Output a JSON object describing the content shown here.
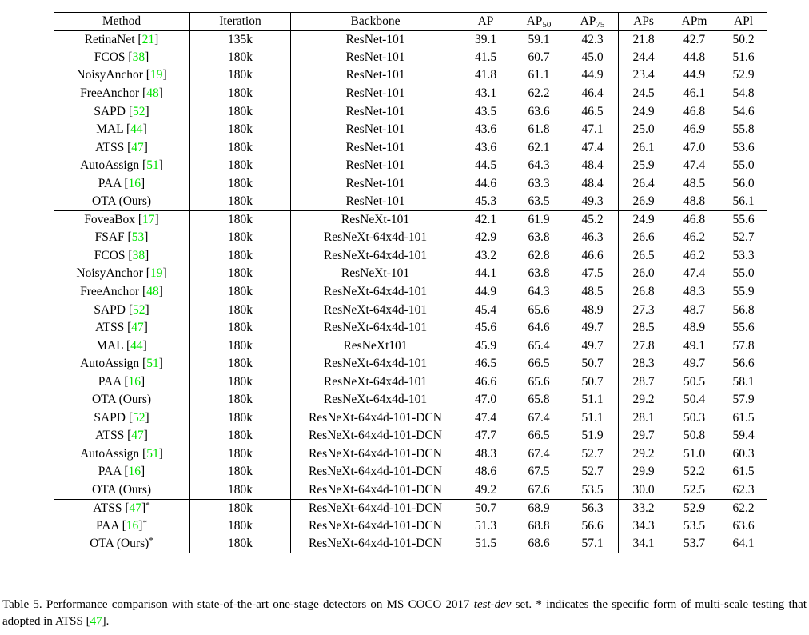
{
  "accent_green": "#00e100",
  "table": {
    "header_cells": [
      {
        "text": "Method"
      },
      {
        "text": "Iteration"
      },
      {
        "text": "Backbone"
      },
      {
        "text": "AP"
      },
      {
        "text": "AP",
        "sub": "50"
      },
      {
        "text": "AP",
        "sub": "75"
      },
      {
        "text": "APs"
      },
      {
        "text": "APm"
      },
      {
        "text": "APl"
      }
    ],
    "groups": [
      {
        "rows": [
          {
            "method": "RetinaNet",
            "cite": "21",
            "star": false,
            "iteration": "135k",
            "backbone": "ResNet-101",
            "values": [
              "39.1",
              "59.1",
              "42.3",
              "21.8",
              "42.7",
              "50.2"
            ],
            "bold": []
          },
          {
            "method": "FCOS",
            "cite": "38",
            "star": false,
            "iteration": "180k",
            "backbone": "ResNet-101",
            "values": [
              "41.5",
              "60.7",
              "45.0",
              "24.4",
              "44.8",
              "51.6"
            ],
            "bold": []
          },
          {
            "method": "NoisyAnchor",
            "cite": "19",
            "star": false,
            "iteration": "180k",
            "backbone": "ResNet-101",
            "values": [
              "41.8",
              "61.1",
              "44.9",
              "23.4",
              "44.9",
              "52.9"
            ],
            "bold": []
          },
          {
            "method": "FreeAnchor",
            "cite": "48",
            "star": false,
            "iteration": "180k",
            "backbone": "ResNet-101",
            "values": [
              "43.1",
              "62.2",
              "46.4",
              "24.5",
              "46.1",
              "54.8"
            ],
            "bold": []
          },
          {
            "method": "SAPD",
            "cite": "52",
            "star": false,
            "iteration": "180k",
            "backbone": "ResNet-101",
            "values": [
              "43.5",
              "63.6",
              "46.5",
              "24.9",
              "46.8",
              "54.6"
            ],
            "bold": []
          },
          {
            "method": "MAL",
            "cite": "44",
            "star": false,
            "iteration": "180k",
            "backbone": "ResNet-101",
            "values": [
              "43.6",
              "61.8",
              "47.1",
              "25.0",
              "46.9",
              "55.8"
            ],
            "bold": []
          },
          {
            "method": "ATSS",
            "cite": "47",
            "star": false,
            "iteration": "180k",
            "backbone": "ResNet-101",
            "values": [
              "43.6",
              "62.1",
              "47.4",
              "26.1",
              "47.0",
              "53.6"
            ],
            "bold": []
          },
          {
            "method": "AutoAssign",
            "cite": "51",
            "star": false,
            "iteration": "180k",
            "backbone": "ResNet-101",
            "values": [
              "44.5",
              "64.3",
              "48.4",
              "25.9",
              "47.4",
              "55.0"
            ],
            "bold": [
              1
            ]
          },
          {
            "method": "PAA",
            "cite": "16",
            "star": false,
            "iteration": "180k",
            "backbone": "ResNet-101",
            "values": [
              "44.6",
              "63.3",
              "48.4",
              "26.4",
              "48.5",
              "56.0"
            ],
            "bold": []
          },
          {
            "method": "OTA (Ours)",
            "cite": null,
            "star": false,
            "iteration": "180k",
            "backbone": "ResNet-101",
            "values": [
              "45.3",
              "63.5",
              "49.3",
              "26.9",
              "48.8",
              "56.1"
            ],
            "bold": [
              0,
              2,
              3,
              4,
              5
            ]
          }
        ]
      },
      {
        "rows": [
          {
            "method": "FoveaBox",
            "cite": "17",
            "star": false,
            "iteration": "180k",
            "backbone": "ResNeXt-101",
            "values": [
              "42.1",
              "61.9",
              "45.2",
              "24.9",
              "46.8",
              "55.6"
            ],
            "bold": []
          },
          {
            "method": "FSAF",
            "cite": "53",
            "star": false,
            "iteration": "180k",
            "backbone": "ResNeXt-64x4d-101",
            "values": [
              "42.9",
              "63.8",
              "46.3",
              "26.6",
              "46.2",
              "52.7"
            ],
            "bold": []
          },
          {
            "method": "FCOS",
            "cite": "38",
            "star": false,
            "iteration": "180k",
            "backbone": "ResNeXt-64x4d-101",
            "values": [
              "43.2",
              "62.8",
              "46.6",
              "26.5",
              "46.2",
              "53.3"
            ],
            "bold": []
          },
          {
            "method": "NoisyAnchor",
            "cite": "19",
            "star": false,
            "iteration": "180k",
            "backbone": "ResNeXt-101",
            "values": [
              "44.1",
              "63.8",
              "47.5",
              "26.0",
              "47.4",
              "55.0"
            ],
            "bold": []
          },
          {
            "method": "FreeAnchor",
            "cite": "48",
            "star": false,
            "iteration": "180k",
            "backbone": "ResNeXt-64x4d-101",
            "values": [
              "44.9",
              "64.3",
              "48.5",
              "26.8",
              "48.3",
              "55.9"
            ],
            "bold": []
          },
          {
            "method": "SAPD",
            "cite": "52",
            "star": false,
            "iteration": "180k",
            "backbone": "ResNeXt-64x4d-101",
            "values": [
              "45.4",
              "65.6",
              "48.9",
              "27.3",
              "48.7",
              "56.8"
            ],
            "bold": []
          },
          {
            "method": "ATSS",
            "cite": "47",
            "star": false,
            "iteration": "180k",
            "backbone": "ResNeXt-64x4d-101",
            "values": [
              "45.6",
              "64.6",
              "49.7",
              "28.5",
              "48.9",
              "55.6"
            ],
            "bold": []
          },
          {
            "method": "MAL",
            "cite": "44",
            "star": false,
            "iteration": "180k",
            "backbone": "ResNeXt101",
            "values": [
              "45.9",
              "65.4",
              "49.7",
              "27.8",
              "49.1",
              "57.8"
            ],
            "bold": []
          },
          {
            "method": "AutoAssign",
            "cite": "51",
            "star": false,
            "iteration": "180k",
            "backbone": "ResNeXt-64x4d-101",
            "values": [
              "46.5",
              "66.5",
              "50.7",
              "28.3",
              "49.7",
              "56.6"
            ],
            "bold": [
              1
            ]
          },
          {
            "method": "PAA",
            "cite": "16",
            "star": false,
            "iteration": "180k",
            "backbone": "ResNeXt-64x4d-101",
            "values": [
              "46.6",
              "65.6",
              "50.7",
              "28.7",
              "50.5",
              "58.1"
            ],
            "bold": [
              4,
              5
            ]
          },
          {
            "method": "OTA (Ours)",
            "cite": null,
            "star": false,
            "iteration": "180k",
            "backbone": "ResNeXt-64x4d-101",
            "values": [
              "47.0",
              "65.8",
              "51.1",
              "29.2",
              "50.4",
              "57.9"
            ],
            "bold": [
              0,
              2,
              3
            ]
          }
        ]
      },
      {
        "rows": [
          {
            "method": "SAPD",
            "cite": "52",
            "star": false,
            "iteration": "180k",
            "backbone": "ResNeXt-64x4d-101-DCN",
            "values": [
              "47.4",
              "67.4",
              "51.1",
              "28.1",
              "50.3",
              "61.5"
            ],
            "bold": []
          },
          {
            "method": "ATSS",
            "cite": "47",
            "star": false,
            "iteration": "180k",
            "backbone": "ResNeXt-64x4d-101-DCN",
            "values": [
              "47.7",
              "66.5",
              "51.9",
              "29.7",
              "50.8",
              "59.4"
            ],
            "bold": []
          },
          {
            "method": "AutoAssign",
            "cite": "51",
            "star": false,
            "iteration": "180k",
            "backbone": "ResNeXt-64x4d-101-DCN",
            "values": [
              "48.3",
              "67.4",
              "52.7",
              "29.2",
              "51.0",
              "60.3"
            ],
            "bold": []
          },
          {
            "method": "PAA",
            "cite": "16",
            "star": false,
            "iteration": "180k",
            "backbone": "ResNeXt-64x4d-101-DCN",
            "values": [
              "48.6",
              "67.5",
              "52.7",
              "29.9",
              "52.2",
              "61.5"
            ],
            "bold": []
          },
          {
            "method": "OTA (Ours)",
            "cite": null,
            "star": false,
            "iteration": "180k",
            "backbone": "ResNeXt-64x4d-101-DCN",
            "values": [
              "49.2",
              "67.6",
              "53.5",
              "30.0",
              "52.5",
              "62.3"
            ],
            "bold": [
              0,
              1,
              2,
              3,
              4,
              5
            ]
          }
        ]
      },
      {
        "rows": [
          {
            "method": "ATSS",
            "cite": "47",
            "star": true,
            "iteration": "180k",
            "backbone": "ResNeXt-64x4d-101-DCN",
            "values": [
              "50.7",
              "68.9",
              "56.3",
              "33.2",
              "52.9",
              "62.2"
            ],
            "bold": [
              1
            ]
          },
          {
            "method": "PAA",
            "cite": "16",
            "star": true,
            "iteration": "180k",
            "backbone": "ResNeXt-64x4d-101-DCN",
            "values": [
              "51.3",
              "68.8",
              "56.6",
              "34.3",
              "53.5",
              "63.6"
            ],
            "bold": [
              3
            ]
          },
          {
            "method": "OTA (Ours)",
            "cite": null,
            "star": true,
            "iteration": "180k",
            "backbone": "ResNeXt-64x4d-101-DCN",
            "values": [
              "51.5",
              "68.6",
              "57.1",
              "34.1",
              "53.7",
              "64.1"
            ],
            "bold": [
              0,
              2,
              4,
              5
            ]
          }
        ]
      }
    ]
  },
  "caption": {
    "prefix": "Table 5. Performance comparison with state-of-the-art one-stage detectors on MS COCO 2017 ",
    "emph": "test-dev",
    "middle": " set. * indicates the specific form of multi-scale testing that adopted in ATSS [",
    "cite": "47",
    "suffix": "]."
  }
}
